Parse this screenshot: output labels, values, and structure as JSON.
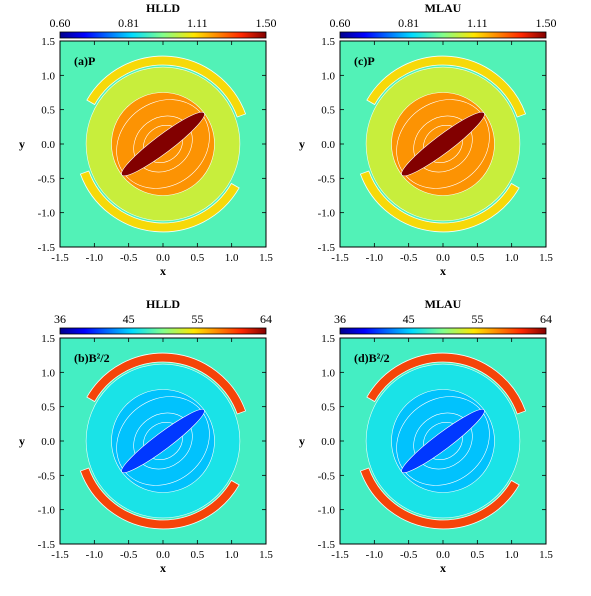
{
  "chart_data": [
    {
      "type": "heatmap",
      "panel_label": "(a)P",
      "colorbar": {
        "title": "HLLD",
        "ticks": [
          "0.60",
          "0.81",
          "1.11",
          "1.50"
        ],
        "range": [
          0.6,
          1.5
        ]
      },
      "xlabel": "x",
      "ylabel": "y",
      "xlim": [
        -1.5,
        1.5
      ],
      "ylim": [
        -1.5,
        1.5
      ],
      "xticks": [
        "-1.5",
        "-1.0",
        "-0.5",
        "0.0",
        "0.5",
        "1.0",
        "1.5"
      ],
      "yticks": [
        "-1.5",
        "-1.0",
        "-0.5",
        "0.0",
        "0.5",
        "1.0",
        "1.5"
      ],
      "background_value": 1.0,
      "outer_ring_value": 1.2,
      "inner_region_value": 1.28,
      "core_value": 1.5,
      "core_center": [
        0.0,
        0.0
      ],
      "core_semi_axes": [
        0.75,
        0.13
      ],
      "core_angle_deg": 37,
      "ring_radius": [
        0.75,
        1.28
      ]
    },
    {
      "type": "heatmap",
      "panel_label": "(c)P",
      "colorbar": {
        "title": "MLAU",
        "ticks": [
          "0.60",
          "0.81",
          "1.11",
          "1.50"
        ],
        "range": [
          0.6,
          1.5
        ]
      },
      "xlabel": "x",
      "ylabel": "y",
      "xlim": [
        -1.5,
        1.5
      ],
      "ylim": [
        -1.5,
        1.5
      ],
      "xticks": [
        "-1.5",
        "-1.0",
        "-0.5",
        "0.0",
        "0.5",
        "1.0",
        "1.5"
      ],
      "yticks": [
        "-1.5",
        "-1.0",
        "-0.5",
        "0.0",
        "0.5",
        "1.0",
        "1.5"
      ],
      "background_value": 1.0,
      "outer_ring_value": 1.2,
      "inner_region_value": 1.28,
      "core_value": 1.5,
      "core_center": [
        0.0,
        0.0
      ],
      "core_semi_axes": [
        0.75,
        0.13
      ],
      "core_angle_deg": 37,
      "ring_radius": [
        0.75,
        1.28
      ]
    },
    {
      "type": "heatmap",
      "panel_label": "(b)B²/2",
      "colorbar": {
        "title": "HLLD",
        "ticks": [
          "36",
          "45",
          "55",
          "64"
        ],
        "range": [
          36,
          64
        ]
      },
      "xlabel": "x",
      "ylabel": "y",
      "xlim": [
        -1.5,
        1.5
      ],
      "ylim": [
        -1.5,
        1.5
      ],
      "xticks": [
        "-1.5",
        "-1.0",
        "-0.5",
        "0.0",
        "0.5",
        "1.0",
        "1.5"
      ],
      "yticks": [
        "-1.5",
        "-1.0",
        "-0.5",
        "0.0",
        "0.5",
        "1.0",
        "1.5"
      ],
      "background_value": 48,
      "outer_ring_value": 60,
      "inner_region_value": 45,
      "core_value": 41,
      "core_center": [
        0.0,
        0.0
      ],
      "core_semi_axes": [
        0.75,
        0.12
      ],
      "core_angle_deg": 37,
      "ring_radius": [
        0.75,
        1.28
      ]
    },
    {
      "type": "heatmap",
      "panel_label": "(d)B²/2",
      "colorbar": {
        "title": "MLAU",
        "ticks": [
          "36",
          "45",
          "55",
          "64"
        ],
        "range": [
          36,
          64
        ]
      },
      "xlabel": "x",
      "ylabel": "y",
      "xlim": [
        -1.5,
        1.5
      ],
      "ylim": [
        -1.5,
        1.5
      ],
      "xticks": [
        "-1.5",
        "-1.0",
        "-0.5",
        "0.0",
        "0.5",
        "1.0",
        "1.5"
      ],
      "yticks": [
        "-1.5",
        "-1.0",
        "-0.5",
        "0.0",
        "0.5",
        "1.0",
        "1.5"
      ],
      "background_value": 48,
      "outer_ring_value": 60,
      "inner_region_value": 45,
      "core_value": 41,
      "core_center": [
        0.0,
        0.0
      ],
      "core_semi_axes": [
        0.75,
        0.12
      ],
      "core_angle_deg": 37,
      "ring_radius": [
        0.75,
        1.28
      ]
    }
  ]
}
